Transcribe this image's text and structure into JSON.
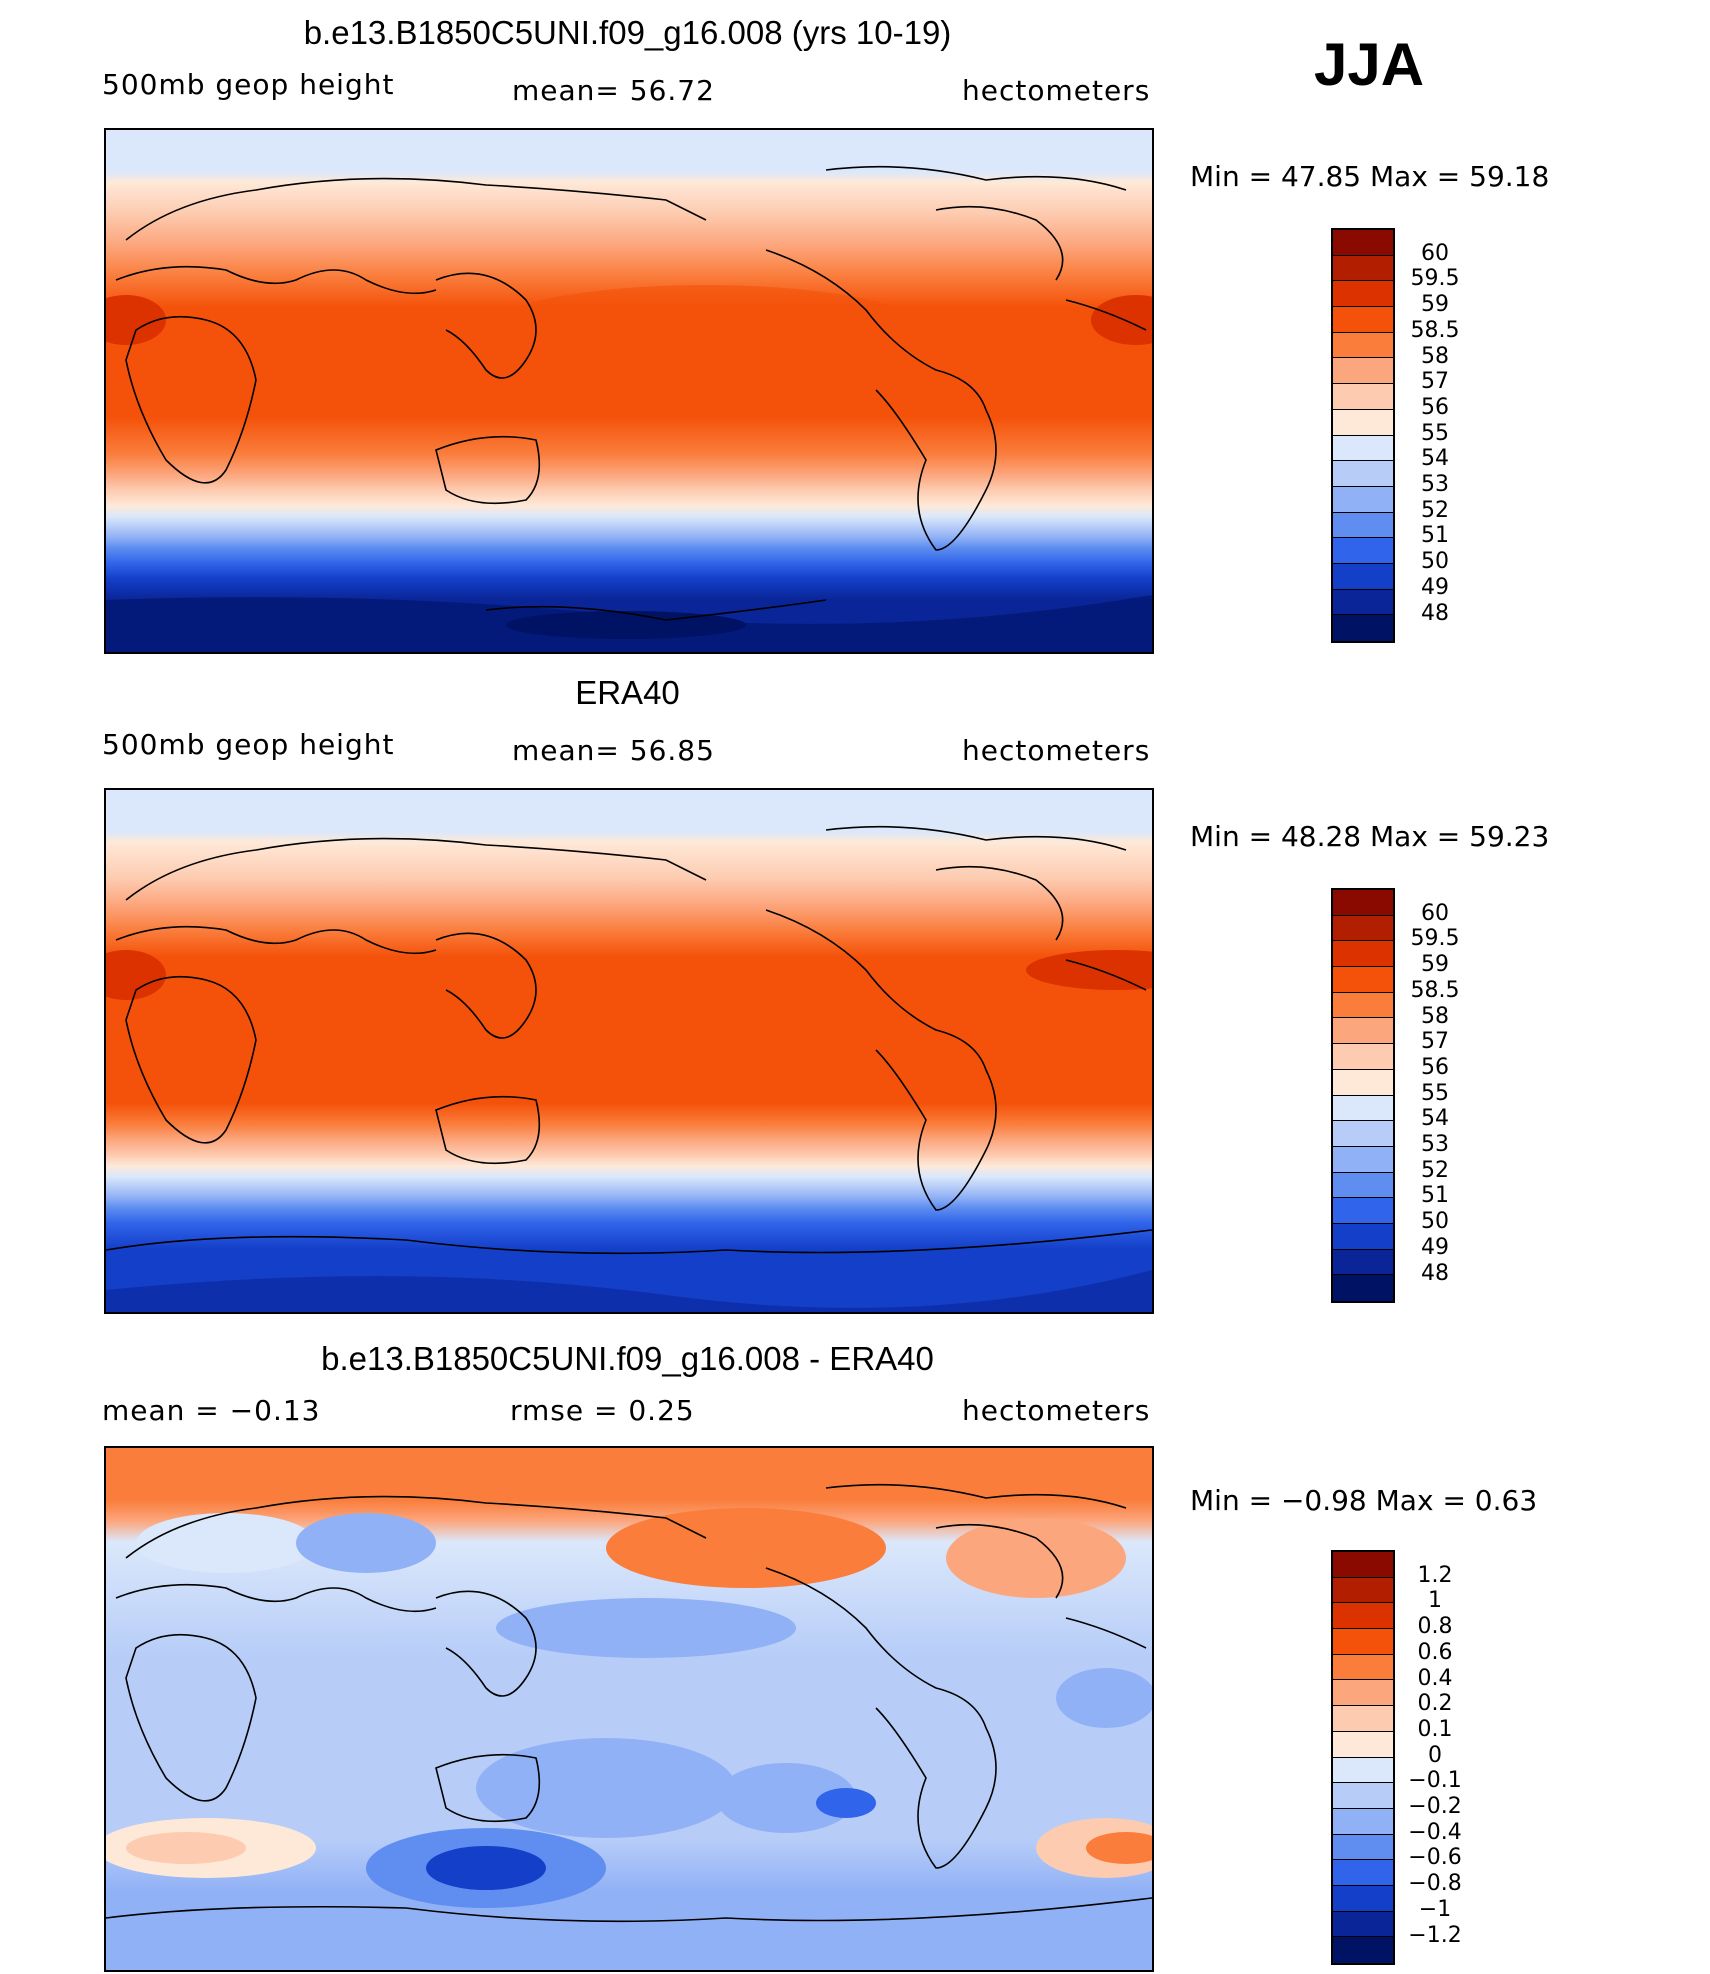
{
  "season": "JJA",
  "panels": [
    {
      "title": "b.e13.B1850C5UNI.f09_g16.008 (yrs 10-19)",
      "left_label": "500mb  geop  height",
      "center_label": "mean=   56.72",
      "right_label": "hectometers",
      "minmax": "Min  =    47.85  Max  =    59.18",
      "colorbar": {
        "labels": [
          "60",
          "59.5",
          "59",
          "58.5",
          "58",
          "57",
          "56",
          "55",
          "54",
          "53",
          "52",
          "51",
          "50",
          "49",
          "48"
        ],
        "colors": [
          "#8b0a00",
          "#b21e00",
          "#dc3200",
          "#f4520a",
          "#fa7d3c",
          "#fca67d",
          "#fdcbb0",
          "#fee9d8",
          "#dbe8fb",
          "#b7cdf8",
          "#91b1f6",
          "#5f8ef0",
          "#3064ea",
          "#143fc8",
          "#0a2597",
          "#001264"
        ]
      }
    },
    {
      "title": "ERA40",
      "left_label": "500mb  geop  height",
      "center_label": "mean=   56.85",
      "right_label": "hectometers",
      "minmax": "Min  =    48.28  Max  =    59.23",
      "colorbar": {
        "labels": [
          "60",
          "59.5",
          "59",
          "58.5",
          "58",
          "57",
          "56",
          "55",
          "54",
          "53",
          "52",
          "51",
          "50",
          "49",
          "48"
        ],
        "colors": [
          "#8b0a00",
          "#b21e00",
          "#dc3200",
          "#f4520a",
          "#fa7d3c",
          "#fca67d",
          "#fdcbb0",
          "#fee9d8",
          "#dbe8fb",
          "#b7cdf8",
          "#91b1f6",
          "#5f8ef0",
          "#3064ea",
          "#143fc8",
          "#0a2597",
          "#001264"
        ]
      }
    },
    {
      "title": "b.e13.B1850C5UNI.f09_g16.008 - ERA40",
      "left_label": "mean  =    −0.13",
      "center_label": "rmse  =     0.25",
      "right_label": "hectometers",
      "minmax": "Min  =    −0.98  Max  =      0.63",
      "colorbar": {
        "labels": [
          "1.2",
          "1",
          "0.8",
          "0.6",
          "0.4",
          "0.2",
          "0.1",
          "0",
          "−0.1",
          "−0.2",
          "−0.4",
          "−0.6",
          "−0.8",
          "−1",
          "−1.2"
        ],
        "colors": [
          "#8b0a00",
          "#b21e00",
          "#dc3200",
          "#f4520a",
          "#fa7d3c",
          "#fca67d",
          "#fdcbb0",
          "#fee9d8",
          "#dbe8fb",
          "#b7cdf8",
          "#91b1f6",
          "#5f8ef0",
          "#3064ea",
          "#143fc8",
          "#0a2597",
          "#001264"
        ]
      }
    }
  ]
}
